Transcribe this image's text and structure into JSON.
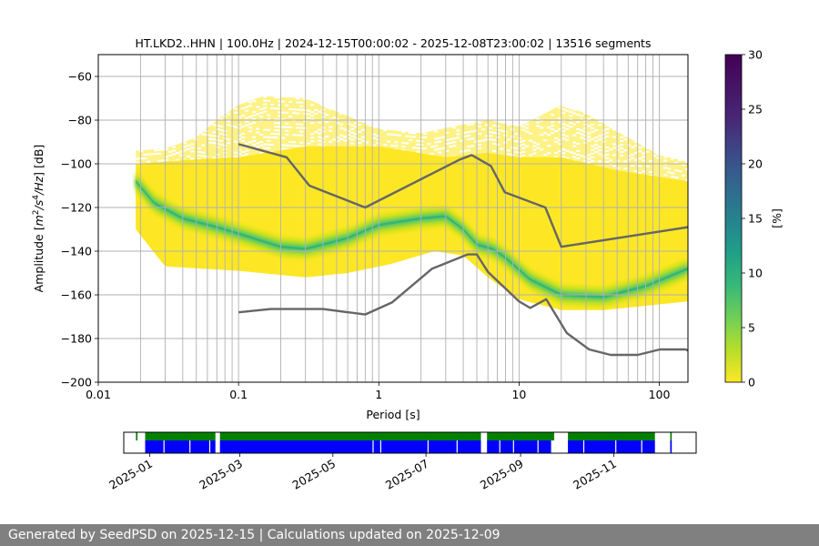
{
  "chart_data": [
    {
      "type": "heatmap",
      "title": "HT.LKD2..HHN | 100.0Hz | 2024-12-15T00:00:02 - 2025-12-08T23:00:02 | 13516 segments",
      "xlabel": "Period [s]",
      "ylabel": "Amplitude [m²/s⁴/Hz] [dB]",
      "x_scale": "log",
      "xlim": [
        0.01,
        160
      ],
      "ylim": [
        -200,
        -50
      ],
      "x_ticks": [
        0.01,
        0.1,
        1,
        10,
        100
      ],
      "x_tick_labels": [
        "0.01",
        "0.1",
        "1",
        "10",
        "100"
      ],
      "y_ticks": [
        -200,
        -180,
        -160,
        -140,
        -120,
        -100,
        -80,
        -60
      ],
      "y_tick_labels": [
        "−200",
        "−180",
        "−160",
        "−140",
        "−120",
        "−100",
        "−80",
        "−60"
      ],
      "grid": true,
      "colormap": "viridis_r",
      "colorbar": {
        "label": "[%]",
        "range": [
          0,
          30
        ],
        "ticks": [
          0,
          5,
          10,
          15,
          20,
          25,
          30
        ],
        "tick_labels": [
          "0",
          "5",
          "10",
          "15",
          "20",
          "25",
          "30"
        ]
      },
      "distribution": {
        "period_range": [
          0.0185,
          160
        ],
        "outer_upper": [
          {
            "x": 0.0185,
            "y": -94
          },
          {
            "x": 0.03,
            "y": -93
          },
          {
            "x": 0.05,
            "y": -88
          },
          {
            "x": 0.07,
            "y": -80
          },
          {
            "x": 0.1,
            "y": -73
          },
          {
            "x": 0.15,
            "y": -69
          },
          {
            "x": 0.3,
            "y": -70
          },
          {
            "x": 0.5,
            "y": -76
          },
          {
            "x": 1.0,
            "y": -84
          },
          {
            "x": 2.0,
            "y": -86
          },
          {
            "x": 4.0,
            "y": -82
          },
          {
            "x": 6.0,
            "y": -80
          },
          {
            "x": 10,
            "y": -83
          },
          {
            "x": 20,
            "y": -73
          },
          {
            "x": 30,
            "y": -77
          },
          {
            "x": 60,
            "y": -88
          },
          {
            "x": 100,
            "y": -96
          },
          {
            "x": 160,
            "y": -99
          }
        ],
        "core_upper": [
          {
            "x": 0.0185,
            "y": -100
          },
          {
            "x": 0.05,
            "y": -98
          },
          {
            "x": 0.1,
            "y": -97
          },
          {
            "x": 0.3,
            "y": -92
          },
          {
            "x": 1.0,
            "y": -92
          },
          {
            "x": 3.0,
            "y": -97
          },
          {
            "x": 6.0,
            "y": -95
          },
          {
            "x": 10,
            "y": -97
          },
          {
            "x": 20,
            "y": -97
          },
          {
            "x": 50,
            "y": -103
          },
          {
            "x": 100,
            "y": -106
          },
          {
            "x": 160,
            "y": -108
          }
        ],
        "core_lower": [
          {
            "x": 0.0185,
            "y": -130
          },
          {
            "x": 0.03,
            "y": -147
          },
          {
            "x": 0.1,
            "y": -149
          },
          {
            "x": 0.3,
            "y": -152
          },
          {
            "x": 0.6,
            "y": -150
          },
          {
            "x": 1.2,
            "y": -146
          },
          {
            "x": 2.5,
            "y": -140
          },
          {
            "x": 4.0,
            "y": -142
          },
          {
            "x": 6.0,
            "y": -152
          },
          {
            "x": 10,
            "y": -162
          },
          {
            "x": 20,
            "y": -167
          },
          {
            "x": 40,
            "y": -167
          },
          {
            "x": 80,
            "y": -165
          },
          {
            "x": 160,
            "y": -163
          }
        ],
        "mode_curve": [
          {
            "x": 0.0185,
            "y": -108
          },
          {
            "x": 0.025,
            "y": -118
          },
          {
            "x": 0.04,
            "y": -125
          },
          {
            "x": 0.07,
            "y": -129
          },
          {
            "x": 0.1,
            "y": -132
          },
          {
            "x": 0.2,
            "y": -138
          },
          {
            "x": 0.3,
            "y": -139
          },
          {
            "x": 0.6,
            "y": -134
          },
          {
            "x": 1.0,
            "y": -128
          },
          {
            "x": 2.0,
            "y": -125
          },
          {
            "x": 3.0,
            "y": -124
          },
          {
            "x": 4.0,
            "y": -130
          },
          {
            "x": 5.0,
            "y": -137
          },
          {
            "x": 6.5,
            "y": -139
          },
          {
            "x": 8.0,
            "y": -143
          },
          {
            "x": 12,
            "y": -153
          },
          {
            "x": 20,
            "y": -160
          },
          {
            "x": 40,
            "y": -161
          },
          {
            "x": 80,
            "y": -156
          },
          {
            "x": 160,
            "y": -148
          }
        ]
      },
      "series": [
        {
          "color": "#666666",
          "points": [
            {
              "x": 0.1,
              "y": -91
            },
            {
              "x": 0.22,
              "y": -97
            },
            {
              "x": 0.32,
              "y": -110
            },
            {
              "x": 0.8,
              "y": -120
            },
            {
              "x": 3.8,
              "y": -98
            },
            {
              "x": 4.6,
              "y": -96
            },
            {
              "x": 6.3,
              "y": -101
            },
            {
              "x": 7.9,
              "y": -113
            },
            {
              "x": 15.4,
              "y": -120
            },
            {
              "x": 20,
              "y": -138
            },
            {
              "x": 160,
              "y": -129
            }
          ]
        },
        {
          "color": "#666666",
          "points": [
            {
              "x": 0.1,
              "y": -168
            },
            {
              "x": 0.17,
              "y": -166.5
            },
            {
              "x": 0.4,
              "y": -166.5
            },
            {
              "x": 0.8,
              "y": -169
            },
            {
              "x": 1.24,
              "y": -163.5
            },
            {
              "x": 2.4,
              "y": -148
            },
            {
              "x": 4.3,
              "y": -141.5
            },
            {
              "x": 5.0,
              "y": -141.5
            },
            {
              "x": 6.0,
              "y": -149.5
            },
            {
              "x": 10,
              "y": -163
            },
            {
              "x": 12,
              "y": -166
            },
            {
              "x": 15.6,
              "y": -162
            },
            {
              "x": 21.9,
              "y": -177.5
            },
            {
              "x": 31.6,
              "y": -185
            },
            {
              "x": 45,
              "y": -187.5
            },
            {
              "x": 70,
              "y": -187.5
            },
            {
              "x": 101,
              "y": -185
            },
            {
              "x": 154,
              "y": -185
            },
            {
              "x": 160,
              "y": -185.5
            }
          ]
        }
      ]
    },
    {
      "type": "timeline",
      "x_tick_labels": [
        "2025-01",
        "2025-03",
        "2025-05",
        "2025-07",
        "2025-09",
        "2025-11"
      ],
      "x_tick_dates": [
        "2025-01-01",
        "2025-03-01",
        "2025-05-01",
        "2025-07-01",
        "2025-09-01",
        "2025-11-01"
      ],
      "xlim": [
        "2024-12-15",
        "2025-12-25"
      ],
      "rows": [
        {
          "color": "#008000",
          "segments": [
            [
              "2024-12-23",
              "2024-12-24"
            ],
            [
              "2024-12-29",
              "2025-02-13"
            ],
            [
              "2025-02-16",
              "2025-08-06"
            ],
            [
              "2025-08-10",
              "2025-09-23"
            ],
            [
              "2025-10-02",
              "2025-11-28"
            ],
            [
              "2025-12-08",
              "2025-12-09"
            ]
          ]
        },
        {
          "color": "#0000ff",
          "segments": [
            [
              "2024-12-29",
              "2025-02-13"
            ],
            [
              "2025-02-16",
              "2025-08-06"
            ],
            [
              "2025-08-10",
              "2025-09-21"
            ],
            [
              "2025-10-02",
              "2025-11-28"
            ],
            [
              "2025-12-08",
              "2025-12-09"
            ]
          ]
        }
      ]
    }
  ],
  "footer": {
    "text": "Generated by SeedPSD on 2025-12-15 | Calculations updated on 2025-12-09"
  }
}
